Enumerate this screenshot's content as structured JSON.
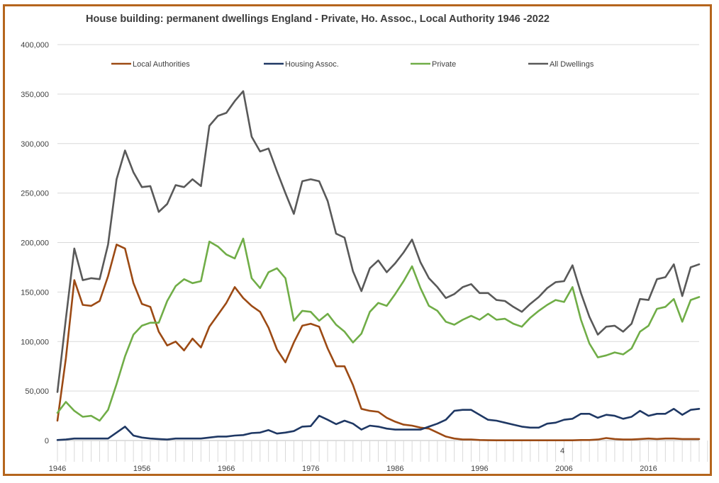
{
  "chart_data": {
    "type": "line",
    "title": "House building: permanent dwellings England - Private, Ho. Assoc., Local Authority 1946 -2022",
    "xlabel": "",
    "ylabel": "",
    "ylim": [
      0,
      400000
    ],
    "yticks": [
      0,
      50000,
      100000,
      150000,
      200000,
      250000,
      300000,
      350000,
      400000
    ],
    "ytick_labels": [
      "0",
      "50,000",
      "100,000",
      "150,000",
      "200,000",
      "250,000",
      "300,000",
      "350,000",
      "400,000"
    ],
    "xlim": [
      1946,
      2022
    ],
    "xtick_labels": [
      "1946",
      "1956",
      "1966",
      "1976",
      "1986",
      "1996",
      "2006",
      "2016"
    ],
    "xtick_values": [
      1946,
      1956,
      1966,
      1976,
      1986,
      1996,
      2006,
      2016
    ],
    "stray_label": "4",
    "grid": true,
    "legend_position": "top",
    "x": [
      1946,
      1947,
      1948,
      1949,
      1950,
      1951,
      1952,
      1953,
      1954,
      1955,
      1956,
      1957,
      1958,
      1959,
      1960,
      1961,
      1962,
      1963,
      1964,
      1965,
      1966,
      1967,
      1968,
      1969,
      1970,
      1971,
      1972,
      1973,
      1974,
      1975,
      1976,
      1977,
      1978,
      1979,
      1980,
      1981,
      1982,
      1983,
      1984,
      1985,
      1986,
      1987,
      1988,
      1989,
      1990,
      1991,
      1992,
      1993,
      1994,
      1995,
      1996,
      1997,
      1998,
      1999,
      2000,
      2001,
      2002,
      2003,
      2004,
      2005,
      2006,
      2007,
      2008,
      2009,
      2010,
      2011,
      2012,
      2013,
      2014,
      2015,
      2016,
      2017,
      2018,
      2019,
      2020,
      2021,
      2022
    ],
    "series": [
      {
        "name": "Local Authorities",
        "color": "#9c4a14",
        "values": [
          20000,
          83000,
          162000,
          137000,
          136000,
          141000,
          166000,
          198000,
          194000,
          159000,
          138000,
          135000,
          110000,
          96000,
          100000,
          91000,
          103000,
          94000,
          115000,
          127000,
          139000,
          155000,
          144000,
          136000,
          130000,
          114000,
          92000,
          79000,
          99000,
          116000,
          118000,
          115000,
          93000,
          75000,
          75000,
          56000,
          32000,
          30000,
          29000,
          23000,
          19000,
          16000,
          15000,
          13000,
          12000,
          8000,
          4000,
          2000,
          1000,
          1000,
          500,
          300,
          200,
          200,
          200,
          200,
          200,
          200,
          200,
          200,
          200,
          200,
          500,
          500,
          1000,
          2500,
          1500,
          1000,
          1000,
          1500,
          2000,
          1500,
          2000,
          2000,
          1500,
          1500,
          1500
        ]
      },
      {
        "name": "Housing Assoc.",
        "color": "#1f3864",
        "values": [
          500,
          1000,
          2000,
          2000,
          2000,
          2000,
          2000,
          8000,
          14000,
          5000,
          3000,
          2000,
          1500,
          1000,
          2000,
          2000,
          2000,
          2000,
          3000,
          4000,
          4000,
          5000,
          5500,
          7500,
          8000,
          10500,
          7000,
          8000,
          9500,
          14000,
          14500,
          25000,
          21000,
          16500,
          20000,
          17000,
          11000,
          15000,
          14000,
          12000,
          11000,
          11000,
          11000,
          11000,
          14000,
          17000,
          21000,
          30000,
          31000,
          31000,
          26000,
          21000,
          20000,
          18000,
          16000,
          14000,
          13000,
          13000,
          17000,
          18000,
          21000,
          22000,
          27000,
          27000,
          23000,
          26000,
          25000,
          22000,
          24000,
          30000,
          25000,
          27000,
          27000,
          32000,
          26000,
          31000,
          32000
        ]
      },
      {
        "name": "Private",
        "color": "#70ad47",
        "values": [
          28000,
          39000,
          30000,
          24000,
          25000,
          20000,
          31000,
          57000,
          85000,
          107000,
          116000,
          119000,
          119000,
          141000,
          156000,
          163000,
          159000,
          161000,
          201000,
          196000,
          188000,
          184000,
          204000,
          164000,
          154000,
          170000,
          174000,
          164000,
          121000,
          131000,
          130000,
          121000,
          128000,
          117000,
          110000,
          99000,
          108000,
          130000,
          139000,
          136000,
          148000,
          161000,
          176000,
          154000,
          136000,
          131000,
          120000,
          117000,
          122000,
          126000,
          122000,
          128000,
          122000,
          123000,
          118000,
          115000,
          124000,
          131000,
          137000,
          142000,
          140000,
          155000,
          122000,
          98000,
          84000,
          86000,
          89000,
          87000,
          93000,
          110000,
          116000,
          133000,
          135000,
          143000,
          120000,
          142000,
          145000
        ]
      },
      {
        "name": "All Dwellings",
        "color": "#595959",
        "values": [
          49000,
          123000,
          194000,
          162000,
          164000,
          163000,
          198000,
          264000,
          293000,
          271000,
          256000,
          257000,
          231000,
          239000,
          258000,
          256000,
          264000,
          257000,
          318000,
          328000,
          331000,
          343000,
          353000,
          307000,
          292000,
          295000,
          272000,
          250000,
          229000,
          262000,
          264000,
          262000,
          242000,
          209000,
          205000,
          171000,
          151000,
          174000,
          182000,
          170000,
          179000,
          190000,
          203000,
          180000,
          164000,
          155000,
          144000,
          148000,
          155000,
          158000,
          149000,
          149000,
          142000,
          141000,
          135000,
          130000,
          138000,
          145000,
          154000,
          160000,
          161000,
          177000,
          149000,
          125000,
          107000,
          115000,
          116000,
          110000,
          118000,
          143000,
          142000,
          163000,
          165000,
          178000,
          146000,
          175000,
          178000
        ]
      }
    ]
  }
}
